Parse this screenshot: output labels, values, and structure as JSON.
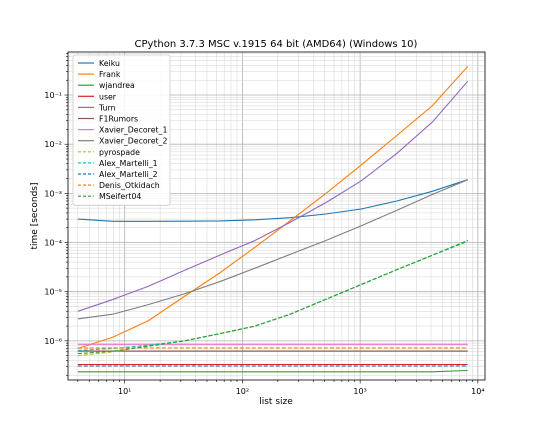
{
  "chart_data": {
    "type": "line",
    "title": "CPython 3.7.3 MSC v.1915 64 bit (AMD64) (Windows 10)",
    "xlabel": "list size",
    "ylabel": "time [seconds]",
    "xscale": "log",
    "yscale": "log",
    "xlim": [
      3.3,
      11500
    ],
    "ylim": [
      1.6e-07,
      0.75
    ],
    "x_tick_labels": [
      "10¹",
      "10²",
      "10³",
      "10⁴"
    ],
    "y_tick_labels": [
      "10⁻⁶",
      "10⁻⁵",
      "10⁻⁴",
      "10⁻³",
      "10⁻²",
      "10⁻¹"
    ],
    "grid": "major and minor",
    "legend_position": "upper-left",
    "x": [
      4,
      8,
      16,
      32,
      64,
      128,
      256,
      512,
      1024,
      2048,
      4096,
      8192
    ],
    "series": [
      {
        "name": "Keiku",
        "color": "#1f77b4",
        "dash": "solid",
        "values": [
          0.0003,
          0.00027,
          0.00027,
          0.000272,
          0.000276,
          0.00029,
          0.00032,
          0.00038,
          0.00048,
          0.0007,
          0.0011,
          0.0019
        ]
      },
      {
        "name": "Frank",
        "color": "#ff7f0e",
        "dash": "solid",
        "values": [
          7e-07,
          1.2e-06,
          2.6e-06,
          8e-06,
          2.4e-05,
          8e-05,
          0.00028,
          0.001,
          0.0038,
          0.015,
          0.06,
          0.38
        ]
      },
      {
        "name": "wjandrea",
        "color": "#2ca02c",
        "dash": "solid",
        "values": [
          2.35e-07,
          2.35e-07,
          2.35e-07,
          2.35e-07,
          2.35e-07,
          2.35e-07,
          2.35e-07,
          2.35e-07,
          2.35e-07,
          2.35e-07,
          2.35e-07,
          2.5e-07
        ]
      },
      {
        "name": "user",
        "color": "#d62728",
        "dash": "solid",
        "values": [
          3.3e-07,
          3.3e-07,
          3.3e-07,
          3.3e-07,
          3.3e-07,
          3.3e-07,
          3.3e-07,
          3.3e-07,
          3.3e-07,
          3.3e-07,
          3.3e-07,
          3.3e-07
        ]
      },
      {
        "name": "Turn",
        "color": "#9467bd",
        "dash": "solid",
        "values": [
          4e-06,
          7e-06,
          1.3e-05,
          2.7e-05,
          5.5e-05,
          0.00011,
          0.00026,
          0.00065,
          0.0018,
          0.0065,
          0.028,
          0.19
        ]
      },
      {
        "name": "F1Rumors",
        "color": "#8c564b",
        "dash": "solid",
        "values": [
          6.2e-07,
          6.2e-07,
          6.2e-07,
          6.2e-07,
          6.2e-07,
          6.2e-07,
          6.2e-07,
          6.2e-07,
          6.2e-07,
          6.2e-07,
          6.2e-07,
          6.2e-07
        ]
      },
      {
        "name": "Xavier_Decoret_1",
        "color": "#e377c2",
        "dash": "solid",
        "values": [
          8.5e-07,
          8.5e-07,
          8.5e-07,
          8.5e-07,
          8.5e-07,
          8.5e-07,
          8.5e-07,
          8.5e-07,
          8.5e-07,
          8.5e-07,
          8.5e-07,
          8.5e-07
        ]
      },
      {
        "name": "Xavier_Decoret_2",
        "color": "#7f7f7f",
        "dash": "solid",
        "values": [
          2.8e-06,
          3.5e-06,
          5.5e-06,
          9e-06,
          1.6e-05,
          3e-05,
          5.8e-05,
          0.00011,
          0.00022,
          0.00045,
          0.00095,
          0.0019
        ]
      },
      {
        "name": "pyrospade",
        "color": "#bcbd22",
        "dash": "dashed",
        "values": [
          5e-07,
          6e-07,
          8e-07,
          1e-06,
          1.4e-06,
          2e-06,
          3.5e-06,
          7e-06,
          1.4e-05,
          2.8e-05,
          5.5e-05,
          0.00011
        ]
      },
      {
        "name": "Alex_Martelli_1",
        "color": "#17becf",
        "dash": "dashed",
        "values": [
          6.4e-07,
          7e-07,
          8.2e-07,
          1e-06,
          1.4e-06,
          2e-06,
          3.5e-06,
          7e-06,
          1.4e-05,
          2.8e-05,
          5.5e-05,
          0.000105
        ]
      },
      {
        "name": "Alex_Martelli_2",
        "color": "#1f77b4",
        "dash": "dashed",
        "values": [
          3.1e-07,
          3.1e-07,
          3.1e-07,
          3.1e-07,
          3.1e-07,
          3.1e-07,
          3.1e-07,
          3.1e-07,
          3.1e-07,
          3.1e-07,
          3.1e-07,
          3.1e-07
        ]
      },
      {
        "name": "Denis_Otkidach",
        "color": "#ff7f0e",
        "dash": "dashed",
        "values": [
          7.2e-07,
          7.2e-07,
          7.2e-07,
          7.2e-07,
          7.2e-07,
          7.2e-07,
          7.2e-07,
          7.2e-07,
          7.2e-07,
          7.2e-07,
          7.2e-07,
          7.2e-07
        ]
      },
      {
        "name": "MSeifert04",
        "color": "#2ca02c",
        "dash": "dashed",
        "values": [
          5.5e-07,
          6.2e-07,
          7.8e-07,
          1e-06,
          1.4e-06,
          2e-06,
          3.5e-06,
          7e-06,
          1.4e-05,
          2.8e-05,
          5.5e-05,
          0.00011
        ]
      }
    ]
  }
}
